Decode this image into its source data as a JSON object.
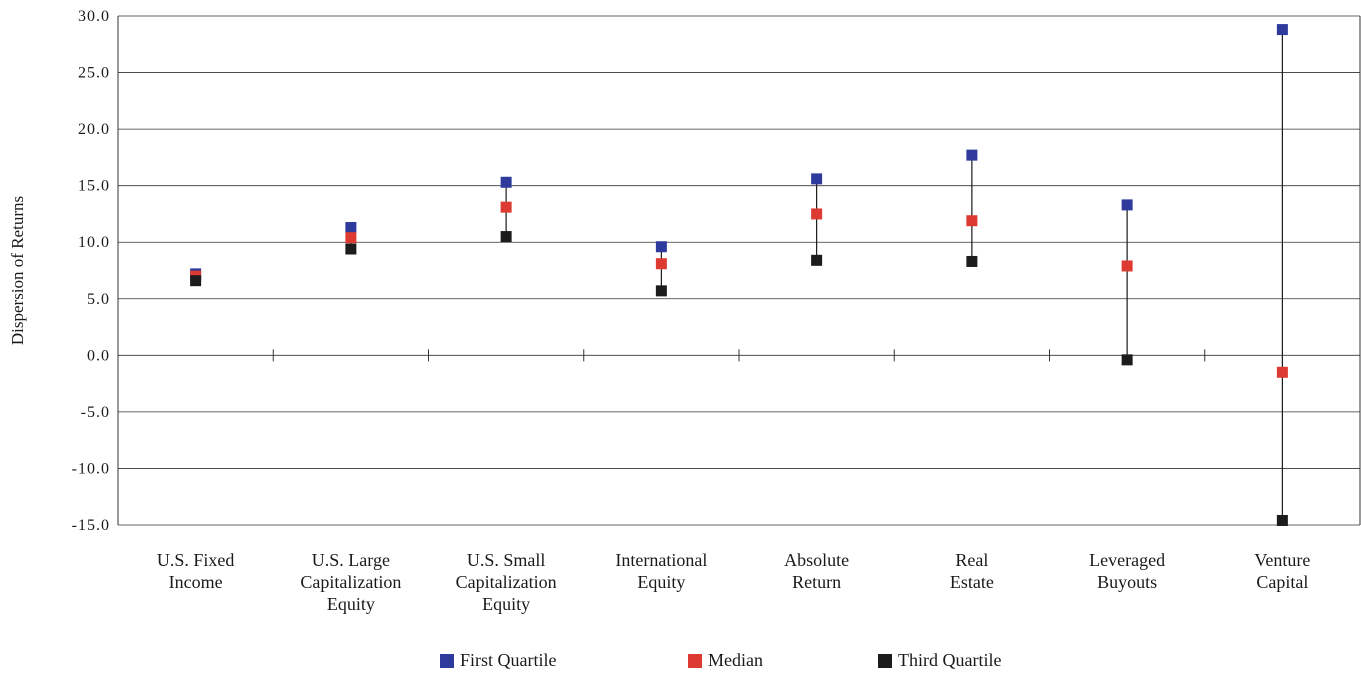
{
  "chart_data": {
    "type": "scatter",
    "ylabel": "Dispersion of Returns",
    "ylim": [
      -15,
      30
    ],
    "yticks": [
      "30.0",
      "25.0",
      "20.0",
      "15.0",
      "10.0",
      "5.0",
      "0.0",
      "-5.0",
      "-10.0",
      "-15.0"
    ],
    "grid": true,
    "legend_position": "bottom",
    "categories": [
      [
        "U.S. Fixed",
        "Income"
      ],
      [
        "U.S. Large",
        "Capitalization",
        "Equity"
      ],
      [
        "U.S. Small",
        "Capitalization",
        "Equity"
      ],
      [
        "International",
        "Equity"
      ],
      [
        "Absolute",
        "Return"
      ],
      [
        "Real",
        "Estate"
      ],
      [
        "Leveraged",
        "Buyouts"
      ],
      [
        "Venture",
        "Capital"
      ]
    ],
    "series": [
      {
        "name": "First Quartile",
        "color": "#2e3a9c",
        "values": [
          7.2,
          11.3,
          15.3,
          9.6,
          15.6,
          17.7,
          13.3,
          28.8
        ]
      },
      {
        "name": "Median",
        "color": "#dd3a32",
        "values": [
          7.0,
          10.4,
          13.1,
          8.1,
          12.5,
          11.9,
          7.9,
          -1.5
        ]
      },
      {
        "name": "Third Quartile",
        "color": "#1c1c1c",
        "values": [
          6.6,
          9.4,
          10.5,
          5.7,
          8.4,
          8.3,
          -0.4,
          -14.6
        ]
      }
    ]
  }
}
